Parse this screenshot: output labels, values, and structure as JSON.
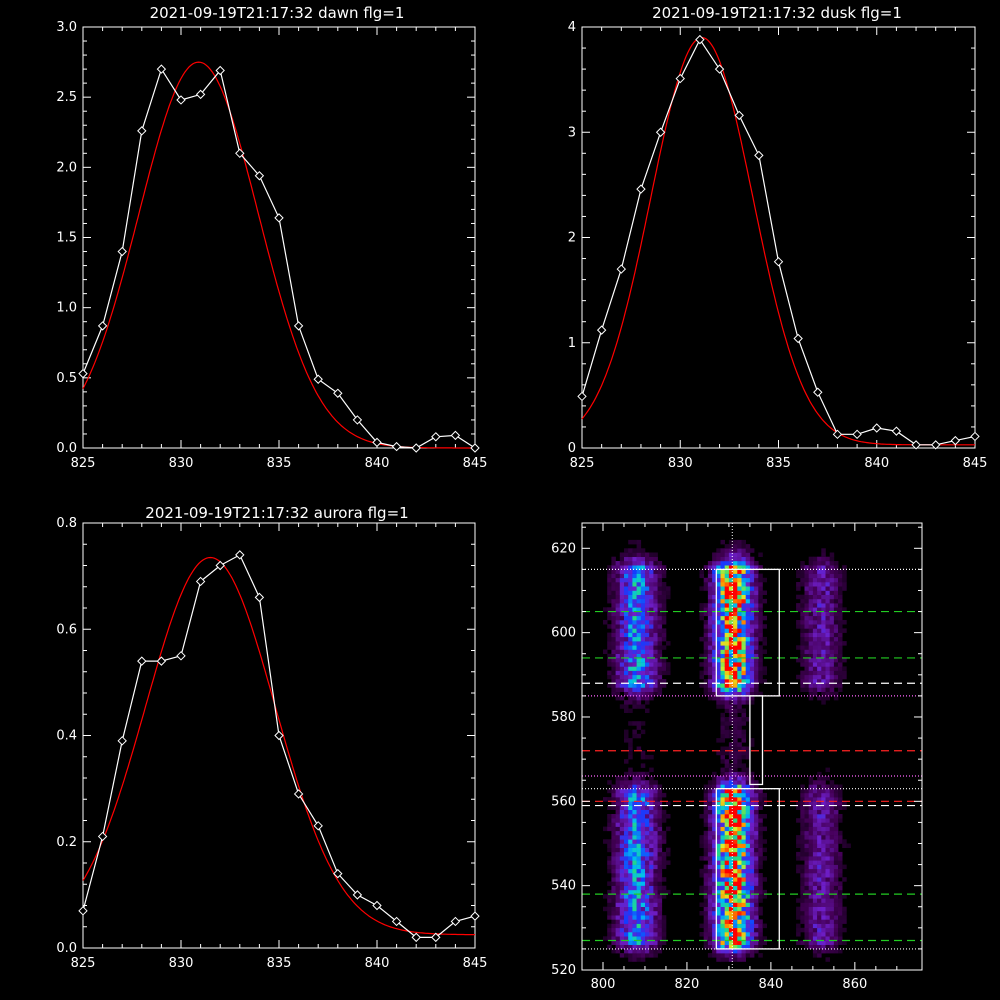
{
  "chart_data": [
    {
      "type": "line",
      "title": "2021-09-19T21:17:32 dawn flg=1",
      "xlim": [
        825,
        845
      ],
      "ylim": [
        0,
        3.0
      ],
      "xticks": [
        825,
        830,
        835,
        840,
        845
      ],
      "yticks": [
        0.0,
        0.5,
        1.0,
        1.5,
        2.0,
        2.5,
        3.0
      ],
      "yticklabels": [
        "0.0",
        "0.5",
        "1.0",
        "1.5",
        "2.0",
        "2.5",
        "3.0"
      ],
      "series": [
        {
          "color": "#ffffff",
          "marker": "diamond",
          "x": [
            825,
            826,
            827,
            828,
            829,
            830,
            831,
            832,
            833,
            834,
            835,
            836,
            837,
            838,
            839,
            840,
            841,
            842,
            843,
            844,
            845
          ],
          "y": [
            0.53,
            0.87,
            1.4,
            2.26,
            2.7,
            2.48,
            2.52,
            2.69,
            2.1,
            1.94,
            1.64,
            0.87,
            0.49,
            0.39,
            0.2,
            0.04,
            0.01,
            0.0,
            0.08,
            0.09,
            0.0
          ]
        },
        {
          "color": "#ff0000",
          "fit": "gaussian",
          "amplitude": 2.75,
          "center": 830.9,
          "sigma": 3.05,
          "offset": 0.0
        }
      ]
    },
    {
      "type": "line",
      "title": "2021-09-19T21:17:32 dusk flg=1",
      "xlim": [
        825,
        845
      ],
      "ylim": [
        0,
        4
      ],
      "xticks": [
        825,
        830,
        835,
        840,
        845
      ],
      "yticks": [
        0,
        1,
        2,
        3,
        4
      ],
      "yticklabels": [
        "0",
        "1",
        "2",
        "3",
        "4"
      ],
      "series": [
        {
          "color": "#ffffff",
          "marker": "diamond",
          "x": [
            825,
            826,
            827,
            828,
            829,
            830,
            831,
            832,
            833,
            834,
            835,
            836,
            837,
            838,
            839,
            840,
            841,
            842,
            843,
            844,
            845
          ],
          "y": [
            0.49,
            1.12,
            1.7,
            2.46,
            3.0,
            3.51,
            3.88,
            3.6,
            3.16,
            2.78,
            1.77,
            1.04,
            0.53,
            0.13,
            0.13,
            0.19,
            0.16,
            0.03,
            0.03,
            0.07,
            0.11
          ]
        },
        {
          "color": "#ff0000",
          "fit": "gaussian",
          "amplitude": 3.87,
          "center": 831.1,
          "sigma": 2.6,
          "offset": 0.03
        }
      ]
    },
    {
      "type": "line",
      "title": "2021-09-19T21:17:32 aurora flg=1",
      "xlim": [
        825,
        845
      ],
      "ylim": [
        0,
        0.8
      ],
      "xticks": [
        825,
        830,
        835,
        840,
        845
      ],
      "yticks": [
        0.0,
        0.2,
        0.4,
        0.6,
        0.8
      ],
      "yticklabels": [
        "0.0",
        "0.2",
        "0.4",
        "0.6",
        "0.8"
      ],
      "series": [
        {
          "color": "#ffffff",
          "marker": "diamond",
          "x": [
            825,
            826,
            827,
            828,
            829,
            830,
            831,
            832,
            833,
            834,
            835,
            836,
            837,
            838,
            839,
            840,
            841,
            842,
            843,
            844,
            845
          ],
          "y": [
            0.07,
            0.21,
            0.39,
            0.54,
            0.54,
            0.55,
            0.69,
            0.72,
            0.74,
            0.66,
            0.4,
            0.29,
            0.23,
            0.14,
            0.1,
            0.08,
            0.05,
            0.02,
            0.02,
            0.05,
            0.06
          ]
        },
        {
          "color": "#ff0000",
          "fit": "gaussian",
          "amplitude": 0.71,
          "center": 831.5,
          "sigma": 3.3,
          "offset": 0.025
        }
      ]
    },
    {
      "type": "heatmap",
      "xlim": [
        795,
        876
      ],
      "ylim": [
        520,
        626
      ],
      "xticks": [
        800,
        820,
        840,
        860
      ],
      "yticks": [
        520,
        540,
        560,
        580,
        600,
        620
      ],
      "colormap": "rainbow",
      "emission_bands": [
        {
          "center": 808,
          "width": 3.5,
          "weight": 0.55
        },
        {
          "center": 831,
          "width": 3.2,
          "weight": 1.0
        },
        {
          "center": 852,
          "width": 3.2,
          "weight": 0.3
        }
      ],
      "bright_ranges": [
        {
          "ymin": 587,
          "ymax": 615
        },
        {
          "ymin": 526,
          "ymax": 562
        }
      ],
      "boxes": [
        {
          "x0": 827,
          "x1": 842,
          "y0": 585,
          "y1": 615
        },
        {
          "x0": 835,
          "x1": 838,
          "y0": 564,
          "y1": 585
        },
        {
          "x0": 827,
          "x1": 842,
          "y0": 525,
          "y1": 563
        }
      ],
      "vertical_line": {
        "x": 830.8,
        "style": "dotted",
        "color": "#ffffff"
      },
      "hlines": [
        {
          "y": 615,
          "style": "dotted",
          "color": "#ffffff"
        },
        {
          "y": 605,
          "style": "dashed",
          "color": "#22cc22"
        },
        {
          "y": 594,
          "style": "dashed",
          "color": "#22cc22"
        },
        {
          "y": 588,
          "style": "dashed",
          "color": "#ffffff"
        },
        {
          "y": 585,
          "style": "dotted",
          "color": "#ff66ff"
        },
        {
          "y": 572,
          "style": "dashed",
          "color": "#ff2222"
        },
        {
          "y": 566,
          "style": "dotted",
          "color": "#ff66ff"
        },
        {
          "y": 563,
          "style": "dotted",
          "color": "#ffffff"
        },
        {
          "y": 560,
          "style": "dashed",
          "color": "#ff2222"
        },
        {
          "y": 559,
          "style": "dashed",
          "color": "#ffffff"
        },
        {
          "y": 538,
          "style": "dashed",
          "color": "#22cc22"
        },
        {
          "y": 527,
          "style": "dashed",
          "color": "#22cc22"
        },
        {
          "y": 525,
          "style": "dotted",
          "color": "#ffffff"
        }
      ]
    }
  ]
}
